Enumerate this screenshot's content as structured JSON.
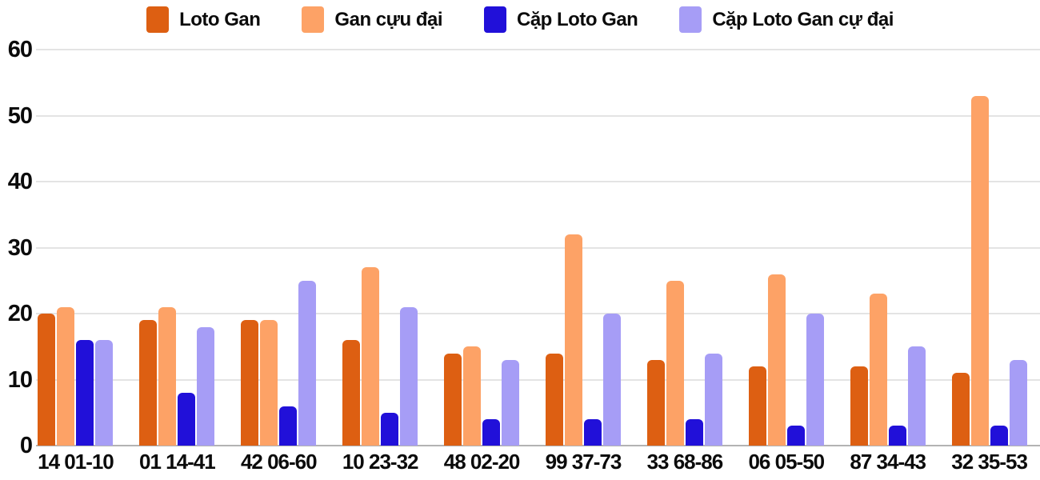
{
  "chart_data": {
    "type": "bar",
    "title": "",
    "categories": [
      "14 01-10",
      "01 14-41",
      "42 06-60",
      "10 23-32",
      "48 02-20",
      "99 37-73",
      "33 68-86",
      "06 05-50",
      "87 34-43",
      "32 35-53"
    ],
    "series": [
      {
        "name": "Loto Gan",
        "color": "#dd5f12",
        "values": [
          20,
          19,
          19,
          16,
          14,
          14,
          13,
          12,
          12,
          11
        ]
      },
      {
        "name": "Gan cựu đại",
        "color": "#fda266",
        "values": [
          21,
          21,
          19,
          27,
          15,
          32,
          25,
          26,
          23,
          53
        ]
      },
      {
        "name": "Cặp Loto Gan",
        "color": "#2110d9",
        "values": [
          16,
          8,
          6,
          5,
          4,
          4,
          4,
          3,
          3,
          3
        ]
      },
      {
        "name": "Cặp Loto Gan cự đại",
        "color": "#a69df6",
        "values": [
          16,
          18,
          25,
          21,
          13,
          20,
          14,
          20,
          15,
          13
        ]
      }
    ],
    "xlabel": "",
    "ylabel": "",
    "ylim": [
      0,
      60
    ],
    "yticks": [
      0,
      10,
      20,
      30,
      40,
      50,
      60
    ],
    "grid": true,
    "legend_position": "top"
  },
  "colors": {
    "background": "#ffffff",
    "grid": "#e4e4e4",
    "axis_line": "#b3b3b3",
    "text": "#0b0b0b"
  }
}
